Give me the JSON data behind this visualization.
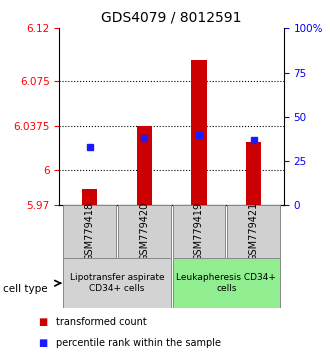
{
  "title": "GDS4079 / 8012591",
  "samples": [
    "GSM779418",
    "GSM779420",
    "GSM779419",
    "GSM779421"
  ],
  "transformed_counts": [
    5.984,
    6.037,
    6.093,
    6.024
  ],
  "percentile_ranks": [
    33,
    38,
    40,
    37
  ],
  "ylim_left": [
    5.97,
    6.12
  ],
  "ylim_right": [
    0,
    100
  ],
  "yticks_left": [
    5.97,
    6.0,
    6.0375,
    6.075,
    6.12
  ],
  "ytick_labels_left": [
    "5.97",
    "6",
    "6.0375",
    "6.075",
    "6.12"
  ],
  "yticks_right": [
    0,
    25,
    50,
    75,
    100
  ],
  "ytick_labels_right": [
    "0",
    "25",
    "50",
    "75",
    "100%"
  ],
  "grid_ticks": [
    6.0,
    6.0375,
    6.075
  ],
  "bar_color": "#cc0000",
  "square_color": "#1a1aff",
  "bar_width": 0.28,
  "groups": [
    {
      "label": "Lipotransfer aspirate\nCD34+ cells",
      "samples": [
        0,
        1
      ],
      "color": "#d3d3d3"
    },
    {
      "label": "Leukapheresis CD34+\ncells",
      "samples": [
        2,
        3
      ],
      "color": "#90ee90"
    }
  ],
  "group_label": "cell type",
  "legend_bar_label": "transformed count",
  "legend_square_label": "percentile rank within the sample",
  "title_fontsize": 10,
  "tick_fontsize": 7.5,
  "sample_fontsize": 7,
  "group_fontsize": 6.5
}
